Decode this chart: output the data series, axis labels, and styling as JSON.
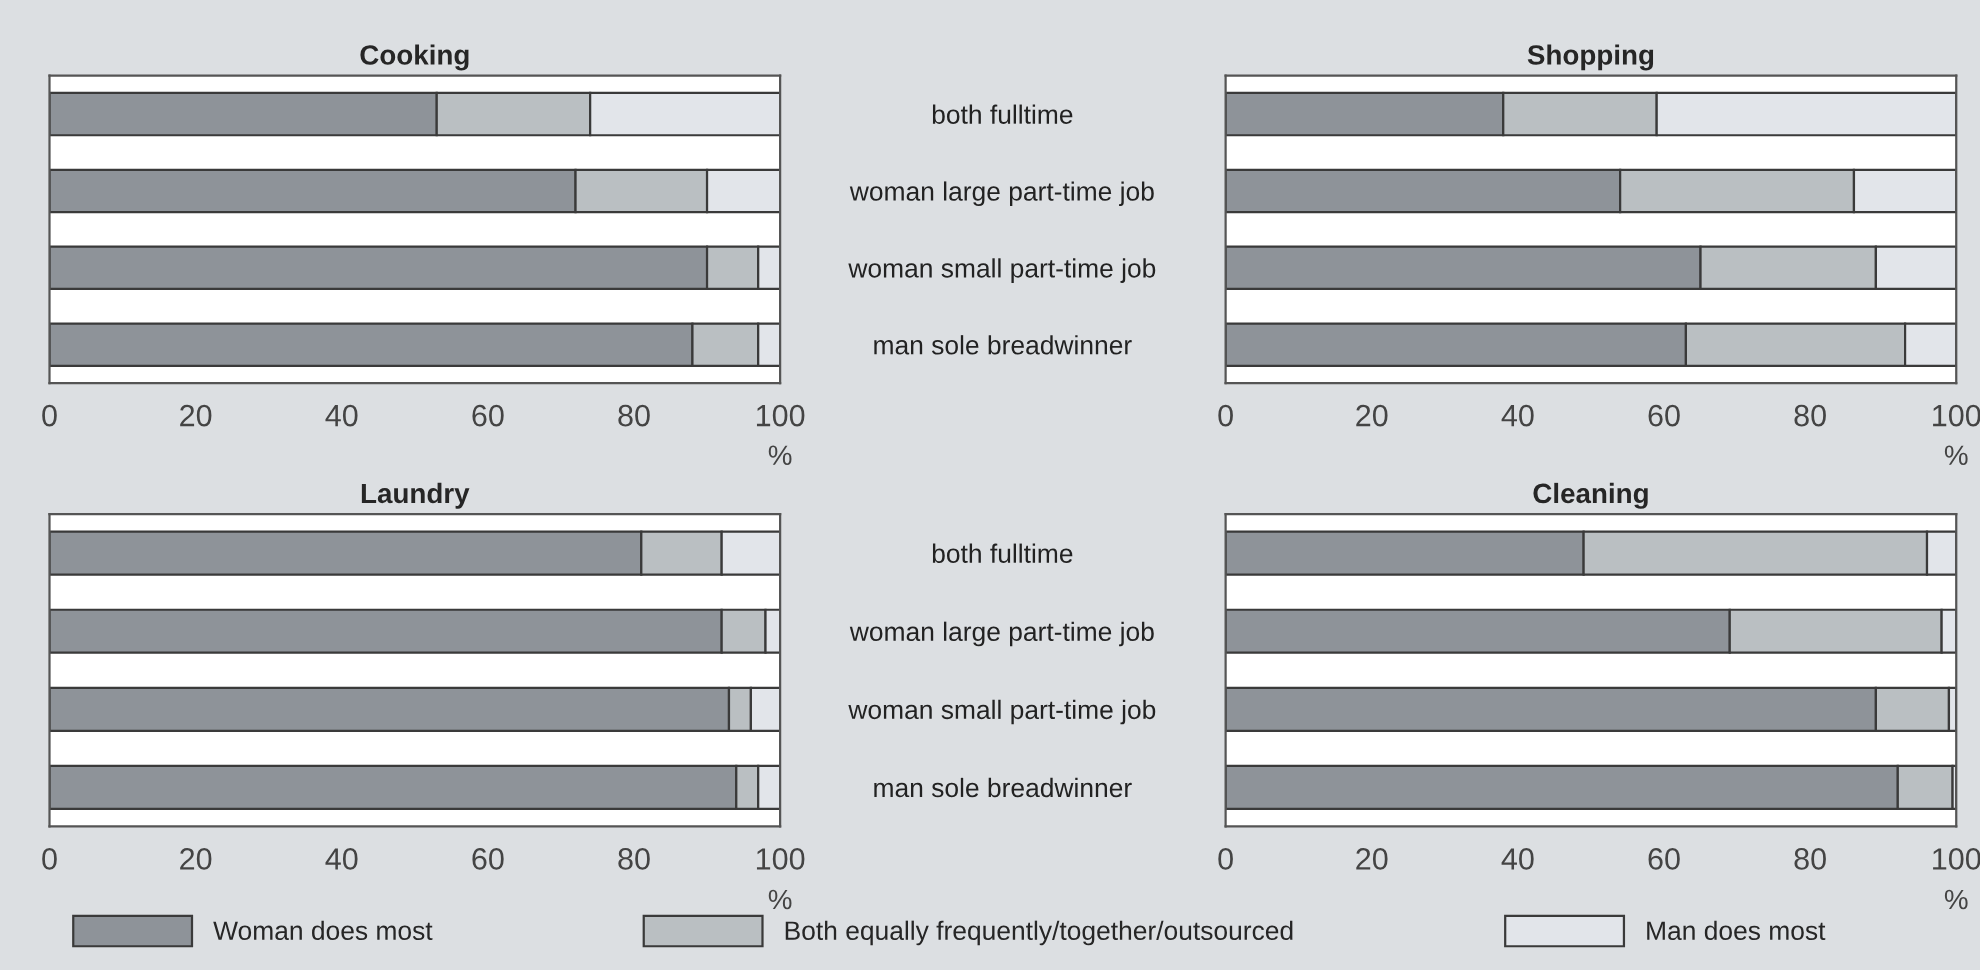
{
  "chart_data": [
    {
      "type": "bar",
      "orientation": "horizontal",
      "stacked": true,
      "title": "Cooking",
      "xlabel": "%",
      "categories": [
        "both fulltime",
        "woman large part-time job",
        "woman small part-time job",
        "man sole breadwinner"
      ],
      "xlim": [
        0,
        100
      ],
      "xticks": [
        0,
        20,
        40,
        60,
        80,
        100
      ],
      "grid": false,
      "legend": "bottom",
      "tick_labels": "xy",
      "series": [
        {
          "name": "Woman does most",
          "color": "#8e9399",
          "values": [
            53,
            72,
            90,
            88
          ]
        },
        {
          "name": "Both equally frequently/together/outsourced",
          "color": "#babfc2",
          "values": [
            21,
            18,
            7,
            9
          ]
        },
        {
          "name": "Man does most",
          "color": "#e2e5ea",
          "values": [
            26,
            10,
            3,
            3
          ]
        }
      ]
    },
    {
      "type": "bar",
      "orientation": "horizontal",
      "stacked": true,
      "title": "Shopping",
      "xlabel": "%",
      "categories": [
        null,
        null,
        null,
        null
      ],
      "xlim": [
        0,
        100
      ],
      "xticks": [
        0,
        20,
        40,
        60,
        80,
        100
      ],
      "grid": false,
      "legend": "bottom",
      "tick_labels": "x",
      "series": [
        {
          "color": "#8e9399",
          "values": [
            38,
            54,
            65,
            63
          ]
        },
        {
          "color": "#babfc2",
          "values": [
            21,
            32,
            24,
            30
          ]
        },
        {
          "color": "#e2e5ea",
          "values": [
            41,
            14,
            11,
            7
          ]
        }
      ]
    },
    {
      "type": "bar",
      "orientation": "horizontal",
      "stacked": true,
      "title": "Laundry",
      "xlabel": "%",
      "categories": [
        "both fulltime",
        "woman large part-time job",
        "woman small part-time job",
        "man sole breadwinner"
      ],
      "xlim": [
        0,
        100
      ],
      "xticks": [
        0,
        20,
        40,
        60,
        80,
        100
      ],
      "grid": false,
      "legend": "bottom",
      "tick_labels": "xy",
      "series": [
        {
          "color": "#8e9399",
          "values": [
            81,
            92,
            93,
            94
          ]
        },
        {
          "color": "#babfc2",
          "values": [
            11,
            6,
            3,
            3
          ]
        },
        {
          "color": "#e2e5ea",
          "values": [
            8,
            2,
            4,
            3
          ]
        }
      ]
    },
    {
      "type": "bar",
      "orientation": "horizontal",
      "stacked": true,
      "title": "Cleaning",
      "xlabel": "%",
      "categories": [
        null,
        null,
        null,
        null
      ],
      "xlim": [
        0,
        100
      ],
      "xticks": [
        0,
        20,
        40,
        60,
        80,
        100
      ],
      "grid": false,
      "legend": "bottom",
      "tick_labels": "x",
      "series": [
        {
          "color": "#8e9399",
          "values": [
            49,
            69,
            89,
            92
          ]
        },
        {
          "color": "#babfc2",
          "values": [
            47,
            29,
            10,
            7.5
          ]
        },
        {
          "color": "#e2e5ea",
          "values": [
            4,
            2,
            1,
            0.5
          ]
        }
      ]
    }
  ]
}
